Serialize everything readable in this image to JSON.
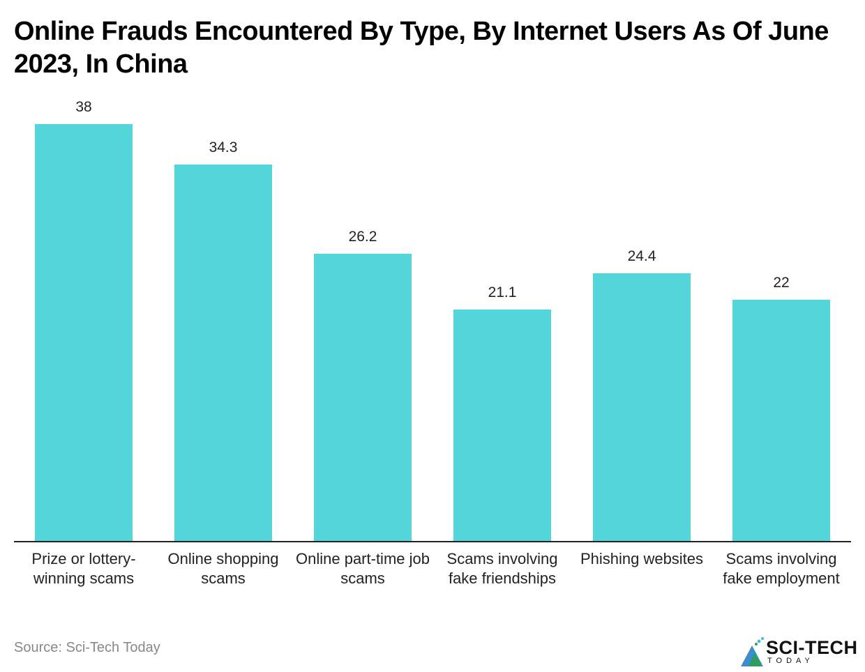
{
  "chart_data": {
    "type": "bar",
    "title": "Online Frauds Encountered By Type, By Internet Users As Of June 2023, In China",
    "categories": [
      "Prize or lottery-winning scams",
      "Online shopping scams",
      "Online part-time job scams",
      "Scams involving fake friendships",
      "Phishing websites",
      "Scams involving fake employment"
    ],
    "values": [
      38,
      34.3,
      26.2,
      21.1,
      24.4,
      22
    ],
    "value_labels": [
      "38",
      "34.3",
      "26.2",
      "21.1",
      "24.4",
      "22"
    ],
    "xlabel": "",
    "ylabel": "",
    "ylim": [
      0,
      38
    ],
    "grid": false,
    "legend": null,
    "bar_color": "#53d5da"
  },
  "header": {
    "title": "Online Frauds Encountered By Type, By Internet Users As Of June 2023, In China"
  },
  "labels": {
    "x": [
      "Prize or lottery-winning scams",
      "Online shopping scams",
      "Online part-time job scams",
      "Scams involving fake friendships",
      "Phishing websites",
      "Scams involving fake employment"
    ]
  },
  "footer": {
    "source": "Source: Sci-Tech Today",
    "logo_text": "SCI-TECH",
    "logo_sub": "TODAY"
  }
}
